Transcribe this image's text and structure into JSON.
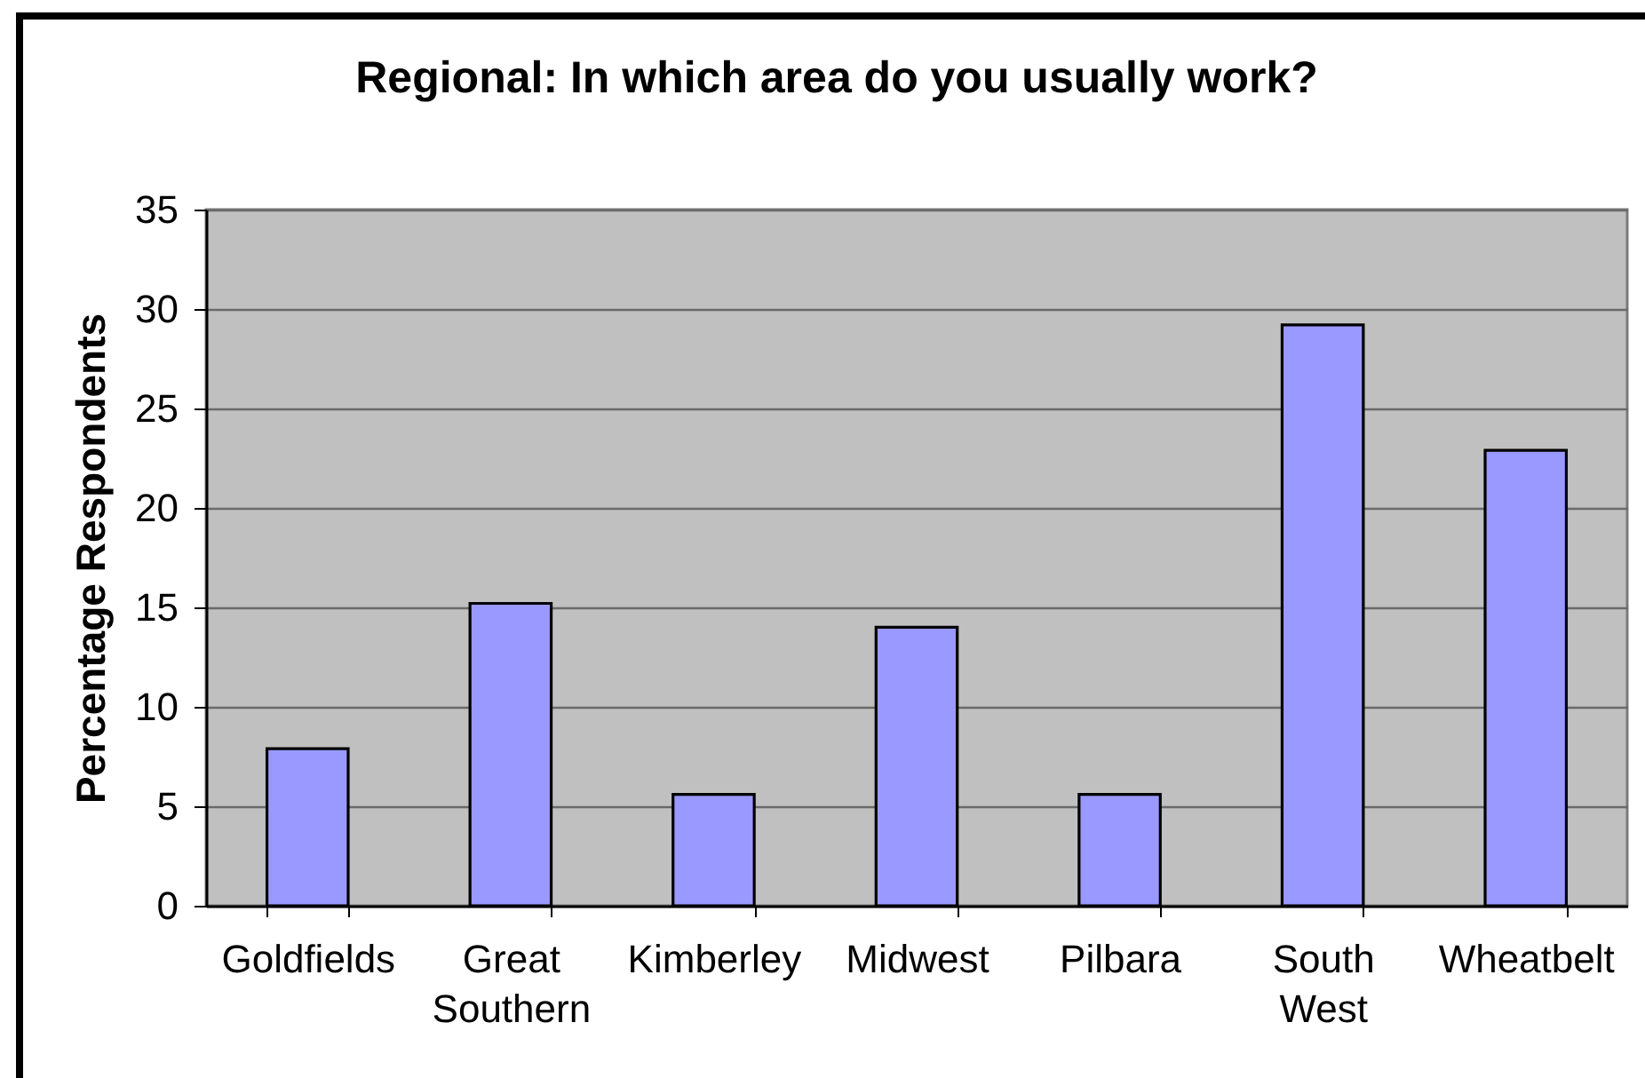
{
  "chart_data": {
    "type": "bar",
    "title": "Regional: In which area do you usually work?",
    "ylabel": "Percentage Respondents",
    "categories": [
      "Goldfields",
      "Great Southern",
      "Kimberley",
      "Midwest",
      "Pilbara",
      "South West",
      "Wheatbelt"
    ],
    "values": [
      7.9,
      15.2,
      5.6,
      14.0,
      5.6,
      29.2,
      22.9
    ],
    "color": "#9999ff",
    "ylim": [
      0,
      35
    ],
    "yticks": [
      0,
      5,
      10,
      15,
      20,
      25,
      30,
      35
    ],
    "grid": "y"
  }
}
